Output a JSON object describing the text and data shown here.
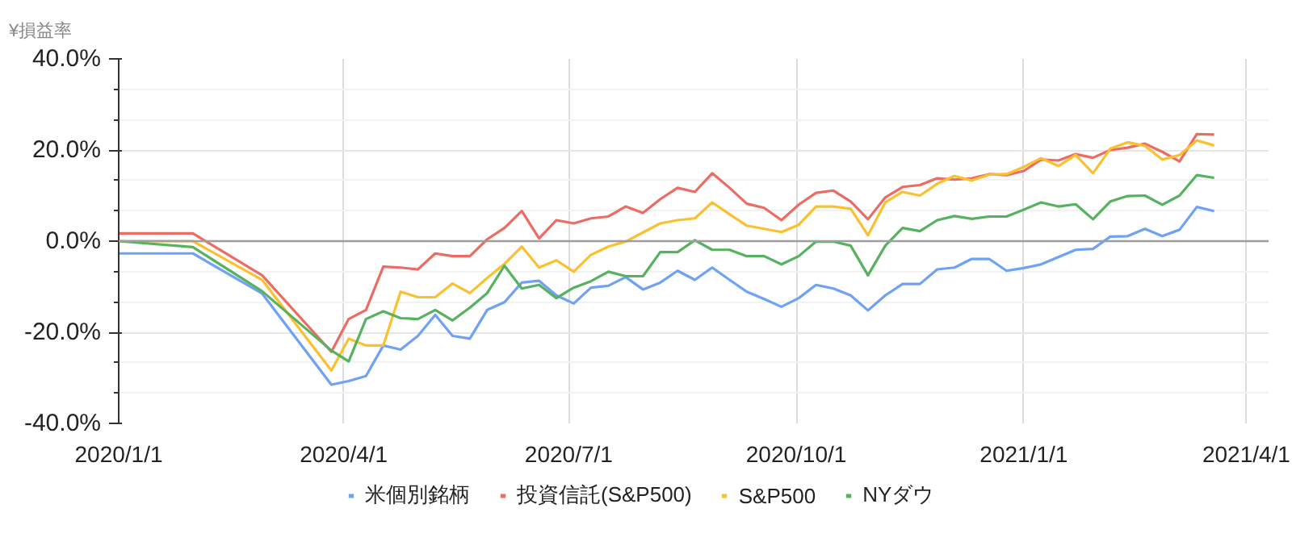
{
  "chart_data": {
    "type": "line",
    "ylabel": "¥損益率",
    "x": [
      "2020-01-01",
      "2020-01-31",
      "2020-02-28",
      "2020-03-27",
      "2020-04-03",
      "2020-04-10",
      "2020-04-17",
      "2020-04-24",
      "2020-05-01",
      "2020-05-08",
      "2020-05-15",
      "2020-05-22",
      "2020-05-29",
      "2020-06-05",
      "2020-06-12",
      "2020-06-19",
      "2020-06-26",
      "2020-07-03",
      "2020-07-10",
      "2020-07-17",
      "2020-07-24",
      "2020-07-31",
      "2020-08-07",
      "2020-08-14",
      "2020-08-21",
      "2020-08-28",
      "2020-09-04",
      "2020-09-11",
      "2020-09-18",
      "2020-09-25",
      "2020-10-02",
      "2020-10-09",
      "2020-10-16",
      "2020-10-23",
      "2020-10-30",
      "2020-11-06",
      "2020-11-13",
      "2020-11-20",
      "2020-11-27",
      "2020-12-04",
      "2020-12-11",
      "2020-12-18",
      "2020-12-25",
      "2021-01-01",
      "2021-01-08",
      "2021-01-15",
      "2021-01-22",
      "2021-01-29",
      "2021-02-05",
      "2021-02-12",
      "2021-02-19",
      "2021-02-26",
      "2021-03-05",
      "2021-03-12",
      "2021-03-19"
    ],
    "series": [
      {
        "name": "米個別銘柄",
        "color": "#6fa1f5",
        "values": [
          -2.7,
          -2.7,
          -11.5,
          -31.5,
          -30.7,
          -29.6,
          -22.9,
          -23.8,
          -20.8,
          -16.2,
          -20.8,
          -21.4,
          -15.1,
          -13.4,
          -9.1,
          -8.7,
          -11.9,
          -13.7,
          -10.2,
          -9.8,
          -7.9,
          -10.6,
          -9.1,
          -6.5,
          -8.5,
          -5.8,
          -8.5,
          -11.1,
          -12.7,
          -14.4,
          -12.5,
          -9.6,
          -10.4,
          -11.9,
          -15.2,
          -11.9,
          -9.4,
          -9.4,
          -6.2,
          -5.8,
          -3.9,
          -3.9,
          -6.5,
          -5.9,
          -5.1,
          -3.5,
          -1.9,
          -1.7,
          1.0,
          1.1,
          2.7,
          1.1,
          2.5,
          7.5,
          6.6
        ]
      },
      {
        "name": "投資信託(S&P500)",
        "color": "#ec6b63",
        "values": [
          1.7,
          1.7,
          -7.5,
          -24.3,
          -17.1,
          -15.1,
          -5.6,
          -5.8,
          -6.2,
          -2.7,
          -3.3,
          -3.3,
          0.4,
          2.9,
          6.6,
          0.6,
          4.6,
          3.9,
          5.0,
          5.4,
          7.6,
          6.2,
          9.2,
          11.7,
          10.8,
          14.9,
          11.7,
          8.2,
          7.3,
          4.6,
          8.0,
          10.6,
          11.1,
          8.7,
          4.8,
          9.6,
          11.9,
          12.3,
          13.8,
          13.5,
          13.8,
          14.7,
          14.5,
          15.4,
          17.9,
          17.7,
          19.1,
          18.3,
          20.0,
          20.5,
          21.4,
          19.6,
          17.5,
          23.5,
          23.4
        ]
      },
      {
        "name": "S&P500",
        "color": "#fbc02d",
        "values": [
          0,
          0,
          -8.5,
          -28.4,
          -21.4,
          -22.9,
          -22.9,
          -11.1,
          -12.3,
          -12.3,
          -9.3,
          -11.4,
          -8.1,
          -5.0,
          -1.2,
          -5.8,
          -4.2,
          -6.7,
          -3.0,
          -1.2,
          -0.1,
          1.9,
          3.9,
          4.6,
          5.0,
          8.5,
          5.9,
          3.4,
          2.7,
          2.0,
          3.6,
          7.6,
          7.6,
          7.1,
          1.3,
          8.5,
          10.8,
          10.0,
          12.6,
          14.3,
          13.3,
          14.6,
          14.7,
          16.3,
          18.2,
          16.5,
          18.9,
          14.9,
          20.3,
          21.7,
          20.9,
          17.9,
          18.9,
          22.1,
          21.0
        ]
      },
      {
        "name": "NYダウ",
        "color": "#57b25f",
        "values": [
          0,
          -1.3,
          -11.0,
          -24.0,
          -26.4,
          -17.1,
          -15.4,
          -16.9,
          -17.1,
          -15.1,
          -17.4,
          -14.6,
          -11.4,
          -5.4,
          -10.4,
          -9.6,
          -12.5,
          -10.2,
          -8.8,
          -6.7,
          -7.7,
          -7.7,
          -2.4,
          -2.4,
          0.2,
          -1.9,
          -1.9,
          -3.3,
          -3.3,
          -5.1,
          -3.3,
          -0.1,
          -0.1,
          -1.0,
          -7.5,
          -1.0,
          2.9,
          2.2,
          4.6,
          5.5,
          4.9,
          5.4,
          5.4,
          6.9,
          8.5,
          7.6,
          8.1,
          4.8,
          8.7,
          9.9,
          10.0,
          8.0,
          10.0,
          14.5,
          13.9
        ]
      }
    ],
    "xlim": [
      "2020-01-01",
      "2021-04-10"
    ],
    "xticks": [
      {
        "value": "2020-01-01",
        "label": "2020/1/1"
      },
      {
        "value": "2020-04-01",
        "label": "2020/4/1"
      },
      {
        "value": "2020-07-01",
        "label": "2020/7/1"
      },
      {
        "value": "2020-10-01",
        "label": "2020/10/1"
      },
      {
        "value": "2021-01-01",
        "label": "2021/1/1"
      },
      {
        "value": "2021-04-01",
        "label": "2021/4/1"
      }
    ],
    "ylim": [
      -40,
      40
    ],
    "yticks": [
      {
        "value": -40,
        "label": "-40.0%"
      },
      {
        "value": -20,
        "label": "-20.0%"
      },
      {
        "value": 0,
        "label": "0.0%"
      },
      {
        "value": 20,
        "label": "20.0%"
      },
      {
        "value": 40,
        "label": "40.0%"
      }
    ],
    "ref_lines": [
      {
        "axis": "y",
        "value": 0,
        "color": "#9e9e9e"
      }
    ],
    "grid": true,
    "legend": "bottom",
    "marker": "none",
    "line_style": "solid"
  }
}
